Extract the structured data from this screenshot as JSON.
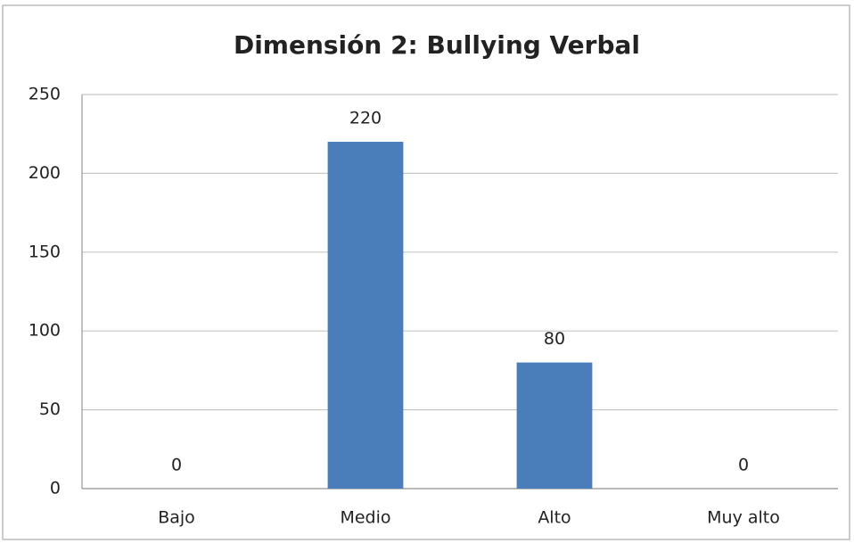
{
  "chart_data": {
    "type": "bar",
    "title": "Dimensión 2: Bullying Verbal",
    "categories": [
      "Bajo",
      "Medio",
      "Alto",
      "Muy alto"
    ],
    "values": [
      0,
      220,
      80,
      0
    ],
    "color": "#4a7ebb",
    "ylim": [
      0,
      250
    ],
    "yticks": [
      0,
      50,
      100,
      150,
      200,
      250
    ],
    "grid": true,
    "data_labels": true
  }
}
